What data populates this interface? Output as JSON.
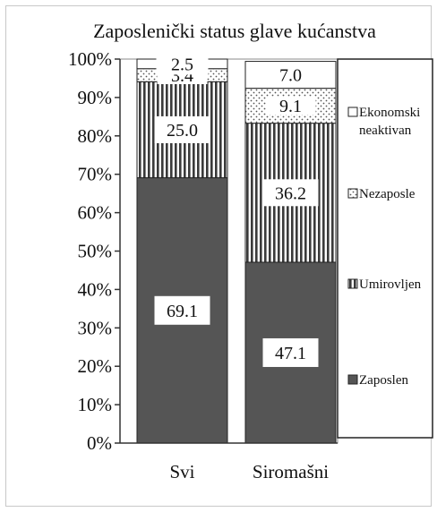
{
  "chart_data": {
    "type": "bar",
    "stacked": true,
    "title": "Zaposlenički status glave kućanstva",
    "categories": [
      "Svi",
      "Siromašni"
    ],
    "series": [
      {
        "name": "Zaposlen",
        "values": [
          69.1,
          47.1
        ],
        "pattern": "solid-dark",
        "color": "#555555"
      },
      {
        "name": "Umirovljen",
        "values": [
          25.0,
          36.2
        ],
        "pattern": "vertical-stripes",
        "color": "#3a3a3a"
      },
      {
        "name": "Nezaposlen",
        "values": [
          3.4,
          9.1
        ],
        "pattern": "dots",
        "color": "#444444"
      },
      {
        "name": "Ekonomski neaktivan",
        "values": [
          2.5,
          7.0
        ],
        "pattern": "white",
        "color": "#ffffff"
      }
    ],
    "legend_labels": [
      "Ekonomski\nneaktivan",
      "Nezaposle",
      "Umirovljen",
      "Zaposlen"
    ],
    "y_ticks": [
      "0%",
      "10%",
      "20%",
      "30%",
      "40%",
      "50%",
      "60%",
      "70%",
      "80%",
      "90%",
      "100%"
    ],
    "ylim": [
      0,
      100
    ],
    "legend_position": "right"
  }
}
